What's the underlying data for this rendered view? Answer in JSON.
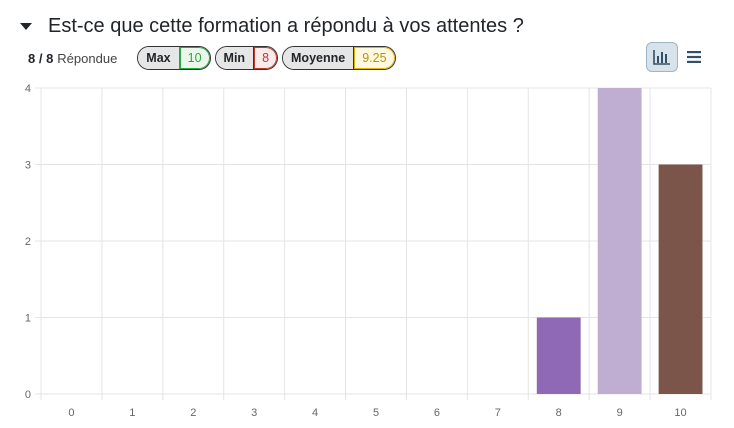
{
  "question": {
    "title": "Est-ce que cette formation a répondu à vos attentes ?"
  },
  "stats": {
    "answered": "8 / 8",
    "answered_label": "Répondue",
    "max_label": "Max",
    "max_value": "10",
    "min_label": "Min",
    "min_value": "8",
    "avg_label": "Moyenne",
    "avg_value": "9.25"
  },
  "view_buttons": {
    "graph_icon": "bar-chart-icon",
    "table_icon": "list-icon",
    "active": "graph"
  },
  "chart_data": {
    "type": "bar",
    "categories": [
      "0",
      "1",
      "2",
      "3",
      "4",
      "5",
      "6",
      "7",
      "8",
      "9",
      "10"
    ],
    "values": [
      0,
      0,
      0,
      0,
      0,
      0,
      0,
      0,
      1,
      4,
      3
    ],
    "colors": [
      "#1f77b4",
      "#ff7f0e",
      "#2ca02c",
      "#d62728",
      "#9467bd",
      "#8c564b",
      "#e377c2",
      "#7f7f7f",
      "#8f69b6",
      "#bfaed2",
      "#7b5549"
    ],
    "ylim": [
      0,
      4
    ],
    "yticks": [
      "0",
      "1",
      "2",
      "3",
      "4"
    ],
    "grid": true,
    "title": "",
    "xlabel": "",
    "ylabel": ""
  }
}
